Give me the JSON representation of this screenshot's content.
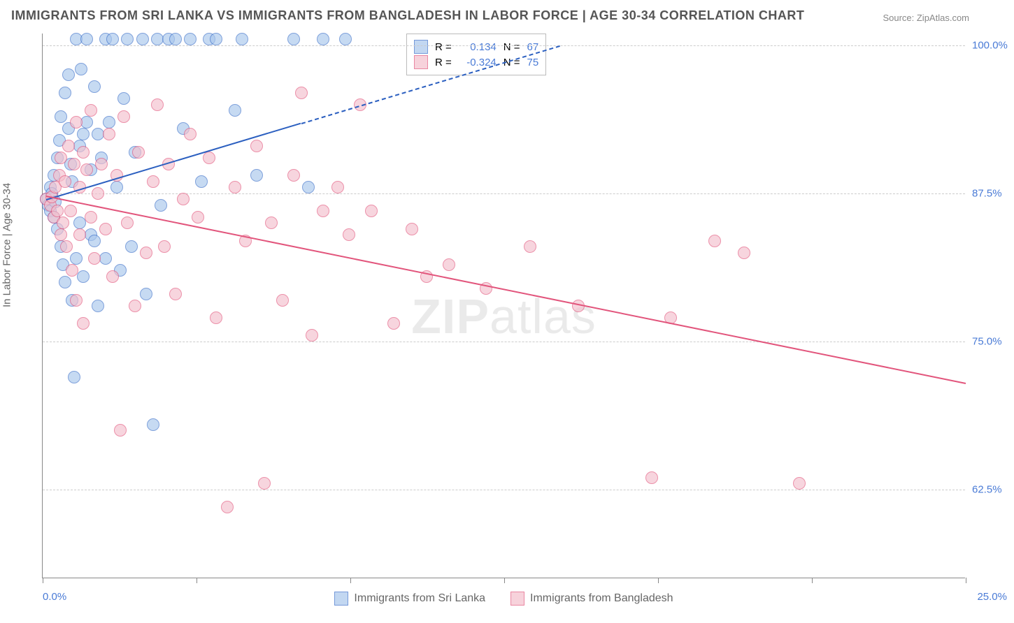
{
  "title": "IMMIGRANTS FROM SRI LANKA VS IMMIGRANTS FROM BANGLADESH IN LABOR FORCE | AGE 30-34 CORRELATION CHART",
  "source": "Source: ZipAtlas.com",
  "watermark_a": "ZIP",
  "watermark_b": "atlas",
  "ylabel": "In Labor Force | Age 30-34",
  "chart": {
    "type": "scatter",
    "background_color": "#ffffff",
    "grid_color": "#cfcfcf",
    "axis_color": "#888888",
    "x_range": [
      0,
      25
    ],
    "y_range": [
      55,
      101
    ],
    "x_ticks_minor": [
      0,
      4.17,
      8.33,
      12.5,
      16.67,
      20.83,
      25
    ],
    "x_tick_labels": {
      "left": "0.0%",
      "right": "25.0%"
    },
    "y_gridlines": [
      62.5,
      75.0,
      87.5,
      100.0
    ],
    "y_tick_labels": [
      "62.5%",
      "75.0%",
      "87.5%",
      "100.0%"
    ],
    "tick_label_color": "#4a7bd6",
    "point_radius": 9,
    "point_opacity": 0.65,
    "series": [
      {
        "name": "Immigrants from Sri Lanka",
        "fill": "#a9c7ec",
        "stroke": "#3b6fc9",
        "R_label": "R =",
        "R": "0.134",
        "N_label": "N =",
        "N": "67",
        "trend": {
          "x1": 0.1,
          "y1": 87.0,
          "x2": 14.0,
          "y2": 100.0,
          "color": "#2b5fc0",
          "solid_until_x": 7.0
        },
        "points": [
          [
            0.1,
            87.0
          ],
          [
            0.15,
            86.5
          ],
          [
            0.2,
            88.0
          ],
          [
            0.2,
            86.0
          ],
          [
            0.25,
            87.5
          ],
          [
            0.3,
            89.0
          ],
          [
            0.3,
            85.5
          ],
          [
            0.35,
            86.8
          ],
          [
            0.4,
            90.5
          ],
          [
            0.4,
            84.5
          ],
          [
            0.45,
            92.0
          ],
          [
            0.5,
            83.0
          ],
          [
            0.5,
            94.0
          ],
          [
            0.55,
            81.5
          ],
          [
            0.6,
            96.0
          ],
          [
            0.6,
            80.0
          ],
          [
            0.7,
            97.5
          ],
          [
            0.7,
            93.0
          ],
          [
            0.75,
            90.0
          ],
          [
            0.8,
            88.5
          ],
          [
            0.8,
            78.5
          ],
          [
            0.85,
            72.0
          ],
          [
            0.9,
            82.0
          ],
          [
            0.9,
            100.5
          ],
          [
            1.0,
            91.5
          ],
          [
            1.0,
            85.0
          ],
          [
            1.05,
            98.0
          ],
          [
            1.1,
            92.5
          ],
          [
            1.1,
            80.5
          ],
          [
            1.2,
            93.5
          ],
          [
            1.2,
            100.5
          ],
          [
            1.3,
            84.0
          ],
          [
            1.3,
            89.5
          ],
          [
            1.4,
            96.5
          ],
          [
            1.4,
            83.5
          ],
          [
            1.5,
            92.5
          ],
          [
            1.5,
            78.0
          ],
          [
            1.6,
            90.5
          ],
          [
            1.7,
            100.5
          ],
          [
            1.7,
            82.0
          ],
          [
            1.8,
            93.5
          ],
          [
            1.9,
            100.5
          ],
          [
            2.0,
            88.0
          ],
          [
            2.1,
            81.0
          ],
          [
            2.2,
            95.5
          ],
          [
            2.3,
            100.5
          ],
          [
            2.4,
            83.0
          ],
          [
            2.5,
            91.0
          ],
          [
            2.7,
            100.5
          ],
          [
            2.8,
            79.0
          ],
          [
            3.0,
            68.0
          ],
          [
            3.1,
            100.5
          ],
          [
            3.2,
            86.5
          ],
          [
            3.4,
            100.5
          ],
          [
            3.6,
            100.5
          ],
          [
            3.8,
            93.0
          ],
          [
            4.0,
            100.5
          ],
          [
            4.3,
            88.5
          ],
          [
            4.5,
            100.5
          ],
          [
            4.7,
            100.5
          ],
          [
            5.2,
            94.5
          ],
          [
            5.4,
            100.5
          ],
          [
            5.8,
            89.0
          ],
          [
            6.8,
            100.5
          ],
          [
            7.2,
            88.0
          ],
          [
            7.6,
            100.5
          ],
          [
            8.2,
            100.5
          ]
        ]
      },
      {
        "name": "Immigrants from Bangladesh",
        "fill": "#f4c0cd",
        "stroke": "#e2557c",
        "R_label": "R =",
        "R": "-0.324",
        "N_label": "N =",
        "N": "75",
        "trend": {
          "x1": 0.1,
          "y1": 87.3,
          "x2": 25.0,
          "y2": 71.5,
          "color": "#e2557c",
          "solid_until_x": 25.0
        },
        "points": [
          [
            0.1,
            87.0
          ],
          [
            0.2,
            86.5
          ],
          [
            0.25,
            87.2
          ],
          [
            0.3,
            85.5
          ],
          [
            0.35,
            88.0
          ],
          [
            0.4,
            86.0
          ],
          [
            0.45,
            89.0
          ],
          [
            0.5,
            84.0
          ],
          [
            0.5,
            90.5
          ],
          [
            0.55,
            85.0
          ],
          [
            0.6,
            88.5
          ],
          [
            0.65,
            83.0
          ],
          [
            0.7,
            91.5
          ],
          [
            0.75,
            86.0
          ],
          [
            0.8,
            81.0
          ],
          [
            0.85,
            90.0
          ],
          [
            0.9,
            93.5
          ],
          [
            0.9,
            78.5
          ],
          [
            1.0,
            88.0
          ],
          [
            1.0,
            84.0
          ],
          [
            1.1,
            91.0
          ],
          [
            1.1,
            76.5
          ],
          [
            1.2,
            89.5
          ],
          [
            1.3,
            85.5
          ],
          [
            1.3,
            94.5
          ],
          [
            1.4,
            82.0
          ],
          [
            1.5,
            87.5
          ],
          [
            1.6,
            90.0
          ],
          [
            1.7,
            84.5
          ],
          [
            1.8,
            92.5
          ],
          [
            1.9,
            80.5
          ],
          [
            2.0,
            89.0
          ],
          [
            2.1,
            67.5
          ],
          [
            2.2,
            94.0
          ],
          [
            2.3,
            85.0
          ],
          [
            2.5,
            78.0
          ],
          [
            2.6,
            91.0
          ],
          [
            2.8,
            82.5
          ],
          [
            3.0,
            88.5
          ],
          [
            3.1,
            95.0
          ],
          [
            3.3,
            83.0
          ],
          [
            3.4,
            90.0
          ],
          [
            3.6,
            79.0
          ],
          [
            3.8,
            87.0
          ],
          [
            4.0,
            92.5
          ],
          [
            4.2,
            85.5
          ],
          [
            4.5,
            90.5
          ],
          [
            4.7,
            77.0
          ],
          [
            5.0,
            61.0
          ],
          [
            5.2,
            88.0
          ],
          [
            5.5,
            83.5
          ],
          [
            5.8,
            91.5
          ],
          [
            6.0,
            63.0
          ],
          [
            6.2,
            85.0
          ],
          [
            6.5,
            78.5
          ],
          [
            6.8,
            89.0
          ],
          [
            7.0,
            96.0
          ],
          [
            7.3,
            75.5
          ],
          [
            7.6,
            86.0
          ],
          [
            8.0,
            88.0
          ],
          [
            8.3,
            84.0
          ],
          [
            8.6,
            95.0
          ],
          [
            8.9,
            86.0
          ],
          [
            9.5,
            76.5
          ],
          [
            10.0,
            84.5
          ],
          [
            10.4,
            80.5
          ],
          [
            11.0,
            81.5
          ],
          [
            12.0,
            79.5
          ],
          [
            13.2,
            83.0
          ],
          [
            14.5,
            78.0
          ],
          [
            16.5,
            63.5
          ],
          [
            17.0,
            77.0
          ],
          [
            18.2,
            83.5
          ],
          [
            19.0,
            82.5
          ],
          [
            20.5,
            63.0
          ]
        ]
      }
    ]
  }
}
